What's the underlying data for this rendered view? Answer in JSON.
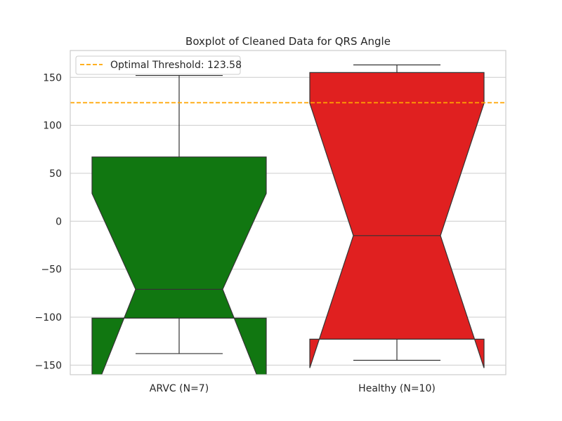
{
  "chart_data": {
    "type": "boxplot",
    "title": "Boxplot of Cleaned Data for QRS Angle",
    "xlabel": "",
    "ylabel": "",
    "ylim": [
      -160,
      178
    ],
    "yticks": [
      -150,
      -100,
      -50,
      0,
      50,
      100,
      150
    ],
    "ytick_labels": [
      "−150",
      "−100",
      "−50",
      "0",
      "50",
      "100",
      "150"
    ],
    "grid": true,
    "notched": true,
    "categories": [
      "ARVC (N=7)",
      "Healthy (N=10)"
    ],
    "boxes": [
      {
        "category": "ARVC (N=7)",
        "color": "#117711",
        "whisker_low": -138,
        "q1": -101,
        "median": -71,
        "q3": 67,
        "whisker_high": 152,
        "notch_low": -185,
        "notch_high": 29
      },
      {
        "category": "Healthy (N=10)",
        "color": "#e02020",
        "whisker_low": -145,
        "q1": -123,
        "median": -15,
        "q3": 155,
        "whisker_high": 163,
        "notch_low": -153,
        "notch_high": 123
      }
    ],
    "threshold": {
      "value": 123.58,
      "label": "Optimal Threshold: 123.58",
      "color": "#ffa500",
      "style": "dashed"
    },
    "legend": {
      "placement": "top-left"
    }
  }
}
